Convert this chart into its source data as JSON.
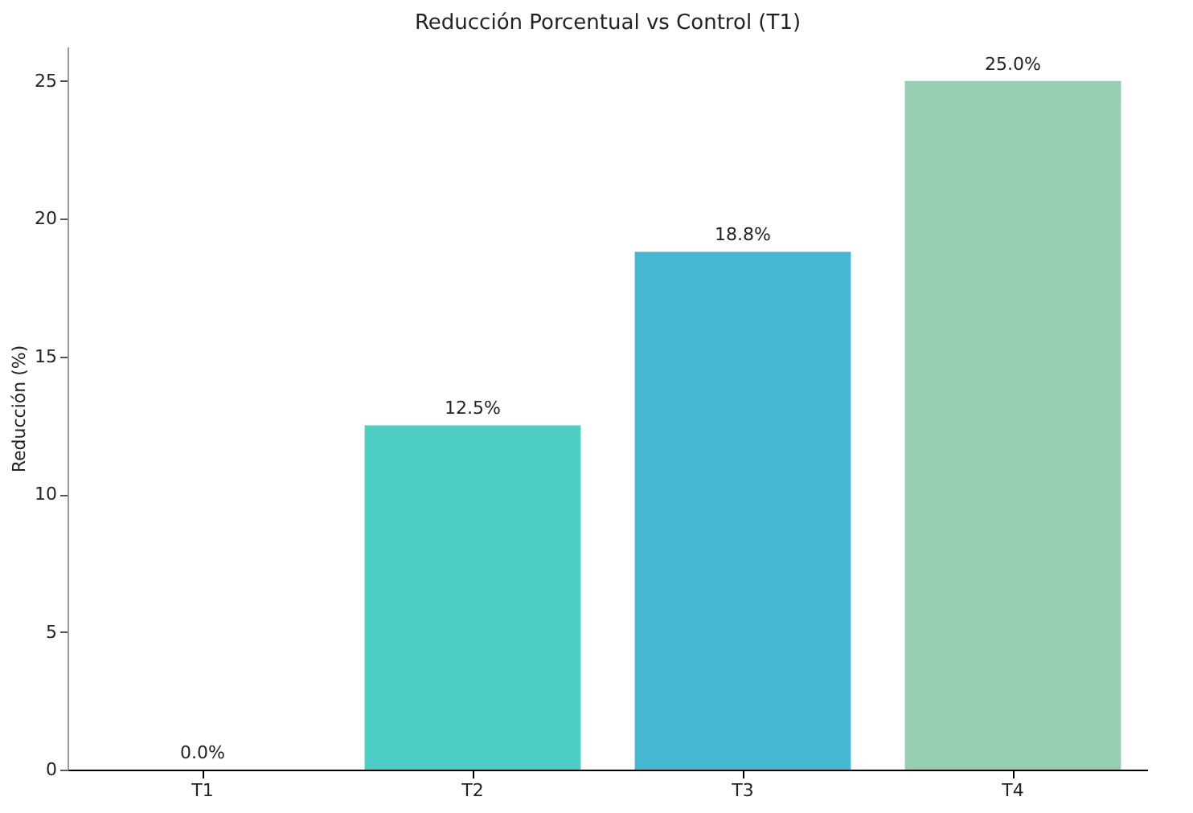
{
  "chart_data": {
    "type": "bar",
    "title": "Reducción Porcentual vs Control (T1)",
    "ylabel": "Reducción (%)",
    "categories": [
      "T1",
      "T2",
      "T3",
      "T4"
    ],
    "values": [
      0,
      12.5,
      18.8,
      25
    ],
    "value_labels": [
      "0.0%",
      "12.5%",
      "18.8%",
      "25.0%"
    ],
    "colors": [
      "#ff6b6b",
      "#4ecdc4",
      "#45b7d1",
      "#96ceb4"
    ],
    "ylim": [
      0,
      26.25
    ],
    "yticks": [
      0,
      5,
      10,
      15,
      20,
      25
    ],
    "grid": false
  }
}
